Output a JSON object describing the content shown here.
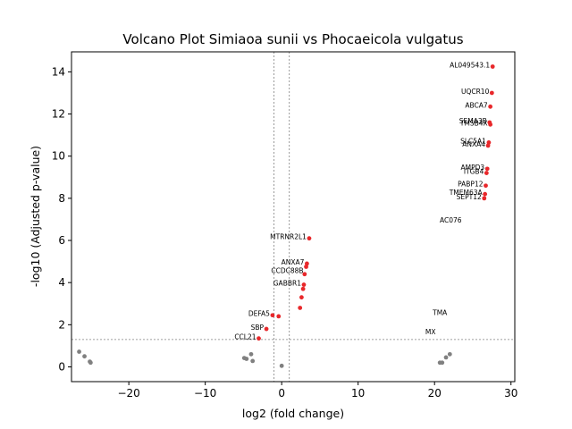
{
  "chart_data": {
    "type": "scatter",
    "title": "Volcano Plot Simiaoa sunii vs Phocaeicola vulgatus",
    "xlabel": "log2 (fold change)",
    "ylabel": "-log10 (Adjusted p-value)",
    "xlim": [
      -27.5,
      30.5
    ],
    "ylim": [
      -0.7,
      14.95
    ],
    "xticks": [
      -20,
      -10,
      0,
      10,
      20,
      30
    ],
    "yticks": [
      0,
      2,
      4,
      6,
      8,
      10,
      12,
      14
    ],
    "xtick_labels": [
      "−20",
      "−10",
      "0",
      "10",
      "20",
      "30"
    ],
    "ytick_labels": [
      "0",
      "2",
      "4",
      "6",
      "8",
      "10",
      "12",
      "14"
    ],
    "threshold_lines": {
      "x": [
        -1,
        1
      ],
      "y": 1.3
    },
    "colors": {
      "significant": "#e8282b",
      "not_significant": "#808080",
      "threshold": "#808080"
    },
    "series": [
      {
        "values": [
          {
            "x": 27.6,
            "y": 14.25
          },
          {
            "x": 27.5,
            "y": 13.0
          },
          {
            "x": 27.3,
            "y": 12.35
          },
          {
            "x": 27.2,
            "y": 11.6
          },
          {
            "x": 27.3,
            "y": 11.5
          },
          {
            "x": 27.1,
            "y": 10.65
          },
          {
            "x": 27.0,
            "y": 10.5
          },
          {
            "x": 26.9,
            "y": 9.4
          },
          {
            "x": 26.8,
            "y": 9.2
          },
          {
            "x": 26.7,
            "y": 8.6
          },
          {
            "x": 26.6,
            "y": 8.2
          },
          {
            "x": 26.5,
            "y": 8.0
          },
          {
            "x": 3.6,
            "y": 6.1
          },
          {
            "x": 3.3,
            "y": 4.9
          },
          {
            "x": 3.2,
            "y": 4.75
          },
          {
            "x": 3.0,
            "y": 4.4
          },
          {
            "x": 2.9,
            "y": 3.9
          },
          {
            "x": 2.8,
            "y": 3.7
          },
          {
            "x": 2.6,
            "y": 3.3
          },
          {
            "x": 2.4,
            "y": 2.8
          },
          {
            "x": -1.2,
            "y": 2.45
          },
          {
            "x": -0.4,
            "y": 2.4
          },
          {
            "x": -2.0,
            "y": 1.8
          },
          {
            "x": -3.0,
            "y": 1.35
          }
        ]
      },
      {
        "values": [
          {
            "x": -26.5,
            "y": 0.72
          },
          {
            "x": -25.8,
            "y": 0.5
          },
          {
            "x": -25.1,
            "y": 0.25
          },
          {
            "x": -25.0,
            "y": 0.2
          },
          {
            "x": -4.9,
            "y": 0.42
          },
          {
            "x": -4.6,
            "y": 0.38
          },
          {
            "x": -4.0,
            "y": 0.6
          },
          {
            "x": -3.8,
            "y": 0.28
          },
          {
            "x": 0.0,
            "y": 0.05
          },
          {
            "x": 20.7,
            "y": 0.2
          },
          {
            "x": 21.0,
            "y": 0.2
          },
          {
            "x": 21.5,
            "y": 0.45
          },
          {
            "x": 22.0,
            "y": 0.6
          }
        ]
      }
    ],
    "annotations": [
      {
        "label": "AL049543.1",
        "x": 27.6,
        "y": 14.25
      },
      {
        "label": "UQCR10",
        "x": 27.5,
        "y": 13.0
      },
      {
        "label": "ABCA7",
        "x": 27.3,
        "y": 12.35
      },
      {
        "label": "SEMA3B",
        "x": 27.2,
        "y": 11.6
      },
      {
        "label": "TMSB4X",
        "x": 27.3,
        "y": 11.5
      },
      {
        "label": "SLC5A1",
        "x": 27.1,
        "y": 10.65
      },
      {
        "label": "ANXA4",
        "x": 27.0,
        "y": 10.5
      },
      {
        "label": "AMPD3",
        "x": 26.9,
        "y": 9.4
      },
      {
        "label": "ITGB4",
        "x": 26.8,
        "y": 9.2
      },
      {
        "label": "PABP12",
        "x": 26.7,
        "y": 8.6
      },
      {
        "label": "TMEM63A",
        "x": 26.6,
        "y": 8.2
      },
      {
        "label": "SEPT12",
        "x": 26.5,
        "y": 8.0
      },
      {
        "label": "AC076",
        "x": 23.9,
        "y": 6.9
      },
      {
        "label": "MTRNR2L1",
        "x": 3.6,
        "y": 6.1
      },
      {
        "label": "ANXA7",
        "x": 3.3,
        "y": 4.9
      },
      {
        "label": "CCDC88B",
        "x": 3.2,
        "y": 4.5
      },
      {
        "label": "GABBR1",
        "x": 2.9,
        "y": 3.9
      },
      {
        "label": "DEFA5",
        "x": -1.2,
        "y": 2.45
      },
      {
        "label": "SBP",
        "x": -2.0,
        "y": 1.8
      },
      {
        "label": "CCL21",
        "x": -3.0,
        "y": 1.35
      },
      {
        "label": "TMA",
        "x": 22.0,
        "y": 2.5
      },
      {
        "label": "MX",
        "x": 20.5,
        "y": 1.6
      }
    ]
  }
}
